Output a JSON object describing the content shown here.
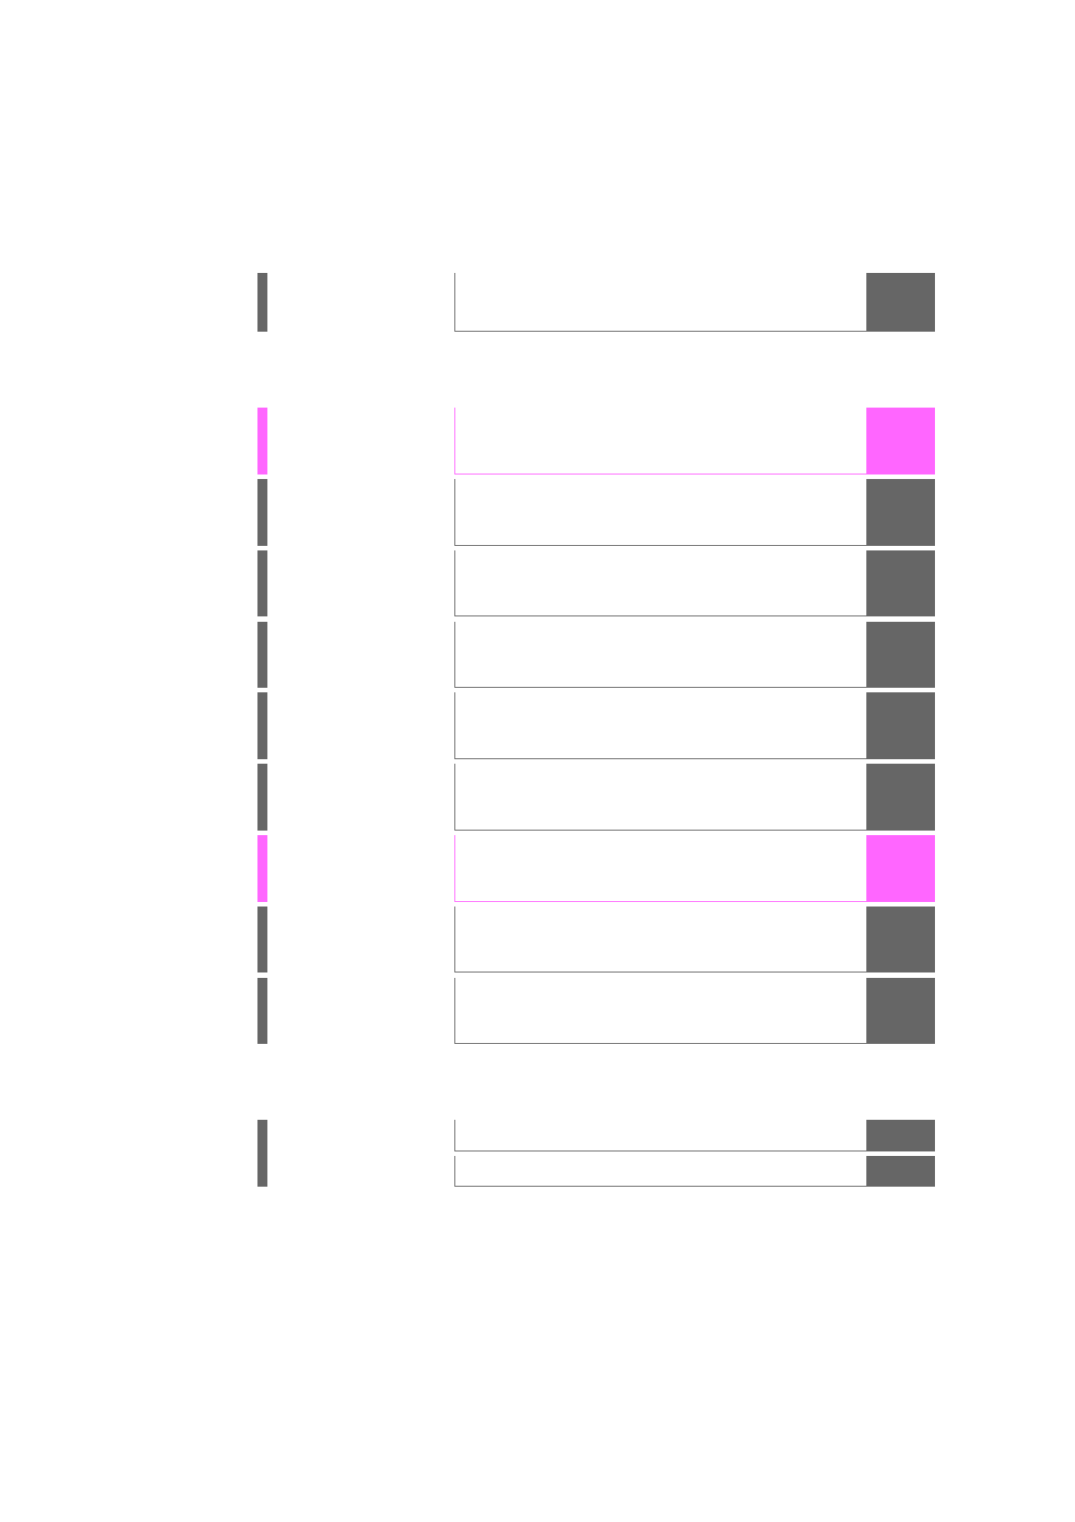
{
  "colors": {
    "default": "#666666",
    "highlight": "#ff66ff"
  },
  "groups": [
    {
      "bars": [
        {
          "rows": [
            {
              "highlight": false
            }
          ]
        }
      ]
    },
    {
      "bars": [
        {
          "rows": [
            {
              "highlight": true
            }
          ]
        },
        {
          "rows": [
            {
              "highlight": false
            }
          ]
        },
        {
          "rows": [
            {
              "highlight": false
            }
          ]
        },
        {
          "rows": [
            {
              "highlight": false
            }
          ]
        },
        {
          "rows": [
            {
              "highlight": false
            }
          ]
        },
        {
          "rows": [
            {
              "highlight": false
            }
          ]
        },
        {
          "rows": [
            {
              "highlight": true
            }
          ]
        },
        {
          "rows": [
            {
              "highlight": false
            }
          ]
        },
        {
          "rows": [
            {
              "highlight": false
            }
          ]
        }
      ]
    },
    {
      "bars": [
        {
          "rows": [
            {
              "highlight": false
            },
            {
              "highlight": false
            }
          ]
        }
      ]
    }
  ]
}
